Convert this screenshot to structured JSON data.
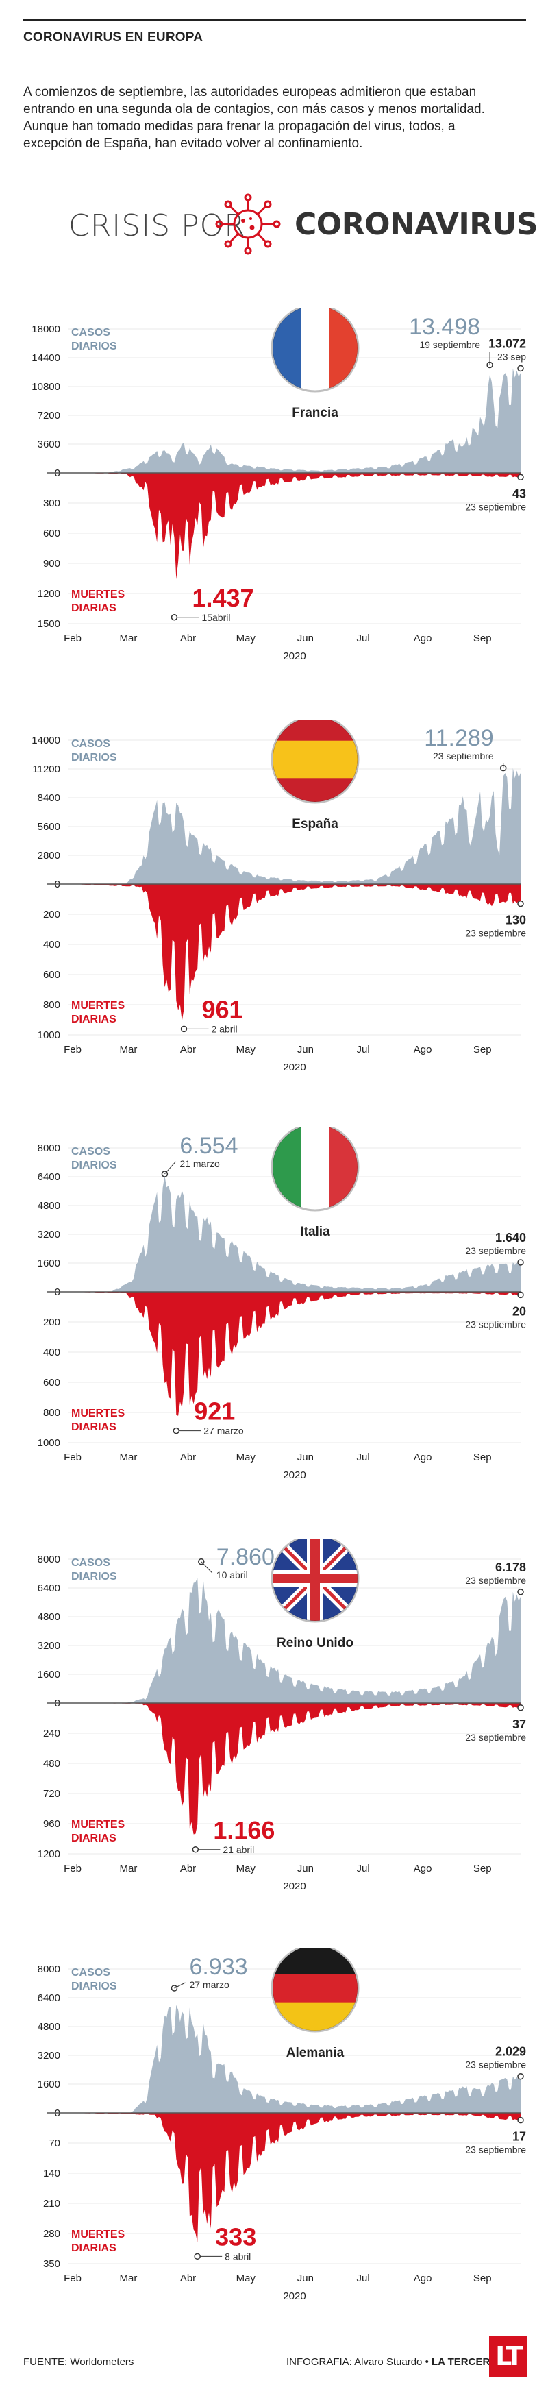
{
  "header": {
    "kicker": "CORONAVIRUS EN EUROPA",
    "intro": "A comienzos de septiembre, las autoridades europeas admitieron que estaban entrando en una segunda ola de contagios, con más casos y menos mortalidad. Aunque han tomado medidas para frenar la propagación del virus, todos, a excepción de España, han evitado volver al confinamiento."
  },
  "logo": {
    "left": "CRISIS POR",
    "right": "CORONAVIRUS"
  },
  "colors": {
    "cases": "#a9b8c6",
    "cases_label": "#7d96ab",
    "deaths": "#d6111f",
    "text": "#222222",
    "brand": "#d6111f"
  },
  "months": [
    "Feb",
    "Mar",
    "Abr",
    "May",
    "Jun",
    "Jul",
    "Ago",
    "Sep"
  ],
  "year": "2020",
  "cases_label_1": "CASOS",
  "cases_label_2": "DIARIOS",
  "deaths_label_1": "MUERTES",
  "deaths_label_2": "DIARIAS",
  "chart_data": [
    {
      "type": "area",
      "country": "Francia",
      "flag": "france",
      "x_range": [
        "2020-02-01",
        "2020-09-23"
      ],
      "cases_ticks": [
        "18000",
        "14400",
        "10800",
        "7200",
        "3600",
        "0"
      ],
      "deaths_ticks": [
        "300",
        "600",
        "900",
        "1200",
        "1500"
      ],
      "ylim_cases": [
        0,
        18000
      ],
      "ylim_deaths": [
        0,
        1500
      ],
      "cases_series": [
        [
          0,
          0
        ],
        [
          20,
          5
        ],
        [
          35,
          800
        ],
        [
          48,
          3200
        ],
        [
          55,
          2000
        ],
        [
          60,
          4100
        ],
        [
          68,
          1600
        ],
        [
          75,
          3900
        ],
        [
          84,
          1200
        ],
        [
          95,
          900
        ],
        [
          110,
          500
        ],
        [
          130,
          300
        ],
        [
          150,
          600
        ],
        [
          165,
          800
        ],
        [
          180,
          1600
        ],
        [
          190,
          2600
        ],
        [
          200,
          4500
        ],
        [
          205,
          3400
        ],
        [
          210,
          6100
        ],
        [
          213,
          5000
        ],
        [
          215,
          9800
        ],
        [
          217,
          8000
        ],
        [
          219,
          13498
        ],
        [
          221,
          9500
        ],
        [
          223,
          8700
        ],
        [
          225,
          11000
        ],
        [
          226,
          13072
        ],
        [
          235,
          13072
        ]
      ],
      "deaths_series": [
        [
          0,
          0
        ],
        [
          30,
          10
        ],
        [
          40,
          200
        ],
        [
          48,
          900
        ],
        [
          52,
          500
        ],
        [
          55,
          1437
        ],
        [
          58,
          700
        ],
        [
          62,
          1100
        ],
        [
          66,
          500
        ],
        [
          70,
          800
        ],
        [
          75,
          400
        ],
        [
          80,
          500
        ],
        [
          90,
          250
        ],
        [
          100,
          150
        ],
        [
          110,
          110
        ],
        [
          130,
          60
        ],
        [
          160,
          30
        ],
        [
          190,
          25
        ],
        [
          220,
          40
        ],
        [
          226,
          43
        ],
        [
          235,
          43
        ]
      ],
      "peak_cases": {
        "value": "13.498",
        "date": "19 septiembre"
      },
      "last_cases": {
        "value": "13.072",
        "date": "23 sep"
      },
      "last_deaths": {
        "value": "43",
        "date": "23 septiembre"
      },
      "peak_deaths": {
        "value": "1.437",
        "date": "15abril"
      }
    },
    {
      "type": "area",
      "country": "España",
      "flag": "spain",
      "x_range": [
        "2020-02-01",
        "2020-09-23"
      ],
      "cases_ticks": [
        "14000",
        "11200",
        "8400",
        "5600",
        "2800",
        "0"
      ],
      "deaths_ticks": [
        "200",
        "400",
        "600",
        "800",
        "1000"
      ],
      "ylim_cases": [
        0,
        14000
      ],
      "ylim_deaths": [
        0,
        1000
      ],
      "cases_series": [
        [
          0,
          0
        ],
        [
          30,
          10
        ],
        [
          38,
          2000
        ],
        [
          45,
          8000
        ],
        [
          48,
          9200
        ],
        [
          52,
          7000
        ],
        [
          56,
          8500
        ],
        [
          62,
          5500
        ],
        [
          70,
          4200
        ],
        [
          80,
          2500
        ],
        [
          90,
          1400
        ],
        [
          100,
          800
        ],
        [
          120,
          400
        ],
        [
          140,
          300
        ],
        [
          160,
          500
        ],
        [
          170,
          1500
        ],
        [
          180,
          3000
        ],
        [
          190,
          5000
        ],
        [
          200,
          7000
        ],
        [
          205,
          8700
        ],
        [
          210,
          5000
        ],
        [
          214,
          9500
        ],
        [
          218,
          6000
        ],
        [
          221,
          9900
        ],
        [
          224,
          3000
        ],
        [
          226,
          11289
        ],
        [
          235,
          11289
        ]
      ],
      "deaths_series": [
        [
          0,
          0
        ],
        [
          38,
          20
        ],
        [
          45,
          300
        ],
        [
          50,
          700
        ],
        [
          55,
          850
        ],
        [
          60,
          961
        ],
        [
          62,
          800
        ],
        [
          66,
          650
        ],
        [
          72,
          500
        ],
        [
          80,
          350
        ],
        [
          90,
          200
        ],
        [
          100,
          110
        ],
        [
          120,
          40
        ],
        [
          140,
          20
        ],
        [
          170,
          15
        ],
        [
          190,
          50
        ],
        [
          210,
          100
        ],
        [
          220,
          150
        ],
        [
          226,
          130
        ],
        [
          235,
          130
        ]
      ],
      "peak_cases": {
        "value": "11.289",
        "date": "23 septiembre"
      },
      "last_deaths": {
        "value": "130",
        "date": "23 septiembre"
      },
      "peak_deaths": {
        "value": "961",
        "date": "2 abril"
      }
    },
    {
      "type": "area",
      "country": "Italia",
      "flag": "italy",
      "x_range": [
        "2020-02-01",
        "2020-09-23"
      ],
      "cases_ticks": [
        "8000",
        "6400",
        "4800",
        "3200",
        "1600",
        "0"
      ],
      "deaths_ticks": [
        "200",
        "400",
        "600",
        "800",
        "1000"
      ],
      "ylim_cases": [
        0,
        8000
      ],
      "ylim_deaths": [
        0,
        1000
      ],
      "cases_series": [
        [
          0,
          0
        ],
        [
          22,
          5
        ],
        [
          32,
          600
        ],
        [
          40,
          3000
        ],
        [
          45,
          5500
        ],
        [
          50,
          6554
        ],
        [
          55,
          5500
        ],
        [
          60,
          5800
        ],
        [
          66,
          4500
        ],
        [
          72,
          4200
        ],
        [
          80,
          3200
        ],
        [
          90,
          2500
        ],
        [
          100,
          1500
        ],
        [
          110,
          900
        ],
        [
          120,
          500
        ],
        [
          135,
          300
        ],
        [
          150,
          250
        ],
        [
          170,
          200
        ],
        [
          185,
          400
        ],
        [
          195,
          900
        ],
        [
          205,
          1200
        ],
        [
          215,
          1500
        ],
        [
          226,
          1640
        ],
        [
          235,
          1640
        ]
      ],
      "deaths_series": [
        [
          0,
          0
        ],
        [
          30,
          10
        ],
        [
          40,
          200
        ],
        [
          48,
          500
        ],
        [
          53,
          800
        ],
        [
          56,
          921
        ],
        [
          60,
          750
        ],
        [
          65,
          800
        ],
        [
          70,
          600
        ],
        [
          78,
          550
        ],
        [
          86,
          400
        ],
        [
          95,
          300
        ],
        [
          105,
          200
        ],
        [
          115,
          100
        ],
        [
          130,
          60
        ],
        [
          150,
          20
        ],
        [
          180,
          10
        ],
        [
          210,
          12
        ],
        [
          226,
          20
        ],
        [
          235,
          20
        ]
      ],
      "peak_cases": {
        "value": "6.554",
        "date": "21 marzo"
      },
      "last_cases": {
        "value": "1.640",
        "date": "23 septiembre"
      },
      "last_deaths": {
        "value": "20",
        "date": "23 septiembre"
      },
      "peak_deaths": {
        "value": "921",
        "date": "27 marzo"
      }
    },
    {
      "type": "area",
      "country": "Reino Unido",
      "flag": "uk",
      "x_range": [
        "2020-02-01",
        "2020-09-23"
      ],
      "cases_ticks": [
        "8000",
        "6400",
        "4800",
        "3200",
        "1600",
        "0"
      ],
      "deaths_ticks": [
        "240",
        "480",
        "720",
        "960",
        "1200"
      ],
      "ylim_cases": [
        0,
        8000
      ],
      "ylim_deaths": [
        0,
        1200
      ],
      "cases_series": [
        [
          0,
          0
        ],
        [
          30,
          5
        ],
        [
          40,
          300
        ],
        [
          48,
          2500
        ],
        [
          55,
          4500
        ],
        [
          62,
          6000
        ],
        [
          65,
          7000
        ],
        [
          69,
          7860
        ],
        [
          73,
          5000
        ],
        [
          78,
          5500
        ],
        [
          85,
          4000
        ],
        [
          92,
          3500
        ],
        [
          100,
          2500
        ],
        [
          110,
          1800
        ],
        [
          120,
          1300
        ],
        [
          135,
          900
        ],
        [
          150,
          700
        ],
        [
          170,
          650
        ],
        [
          190,
          900
        ],
        [
          205,
          1500
        ],
        [
          215,
          3000
        ],
        [
          222,
          4000
        ],
        [
          226,
          6178
        ],
        [
          235,
          6178
        ]
      ],
      "deaths_series": [
        [
          0,
          0
        ],
        [
          38,
          5
        ],
        [
          45,
          100
        ],
        [
          52,
          500
        ],
        [
          58,
          800
        ],
        [
          62,
          1000
        ],
        [
          66,
          1166
        ],
        [
          70,
          800
        ],
        [
          75,
          700
        ],
        [
          80,
          550
        ],
        [
          88,
          450
        ],
        [
          95,
          350
        ],
        [
          105,
          250
        ],
        [
          115,
          200
        ],
        [
          130,
          120
        ],
        [
          150,
          60
        ],
        [
          170,
          25
        ],
        [
          200,
          15
        ],
        [
          220,
          25
        ],
        [
          226,
          37
        ],
        [
          235,
          37
        ]
      ],
      "peak_cases": {
        "value": "7.860",
        "date": "10 abril"
      },
      "last_cases": {
        "value": "6.178",
        "date": "23 septiembre"
      },
      "last_deaths": {
        "value": "37",
        "date": "23 septiembre"
      },
      "peak_deaths": {
        "value": "1.166",
        "date": "21 abril"
      }
    },
    {
      "type": "area",
      "country": "Alemania",
      "flag": "germany",
      "x_range": [
        "2020-02-01",
        "2020-09-23"
      ],
      "cases_ticks": [
        "8000",
        "6400",
        "4800",
        "3200",
        "1600",
        "0"
      ],
      "deaths_ticks": [
        "70",
        "140",
        "210",
        "280",
        "350"
      ],
      "ylim_cases": [
        0,
        8000
      ],
      "ylim_deaths": [
        0,
        350
      ],
      "cases_series": [
        [
          0,
          0
        ],
        [
          32,
          5
        ],
        [
          40,
          800
        ],
        [
          45,
          3500
        ],
        [
          50,
          5500
        ],
        [
          55,
          6933
        ],
        [
          58,
          5500
        ],
        [
          62,
          6500
        ],
        [
          66,
          4500
        ],
        [
          70,
          5200
        ],
        [
          75,
          3000
        ],
        [
          82,
          2800
        ],
        [
          90,
          1500
        ],
        [
          100,
          1000
        ],
        [
          110,
          700
        ],
        [
          125,
          500
        ],
        [
          140,
          400
        ],
        [
          160,
          500
        ],
        [
          180,
          900
        ],
        [
          195,
          1200
        ],
        [
          205,
          1500
        ],
        [
          215,
          1400
        ],
        [
          222,
          1800
        ],
        [
          226,
          2029
        ],
        [
          235,
          2029
        ]
      ],
      "deaths_series": [
        [
          0,
          0
        ],
        [
          45,
          5
        ],
        [
          52,
          60
        ],
        [
          58,
          150
        ],
        [
          63,
          250
        ],
        [
          67,
          333
        ],
        [
          70,
          250
        ],
        [
          75,
          280
        ],
        [
          80,
          200
        ],
        [
          88,
          180
        ],
        [
          95,
          130
        ],
        [
          105,
          80
        ],
        [
          115,
          50
        ],
        [
          130,
          25
        ],
        [
          150,
          10
        ],
        [
          180,
          5
        ],
        [
          210,
          6
        ],
        [
          226,
          17
        ],
        [
          235,
          17
        ]
      ],
      "peak_cases": {
        "value": "6.933",
        "date": "27 marzo"
      },
      "last_cases": {
        "value": "2.029",
        "date": "23 septiembre"
      },
      "last_deaths": {
        "value": "17",
        "date": "23 septiembre"
      },
      "peak_deaths": {
        "value": "333",
        "date": "8 abril"
      }
    }
  ],
  "footer": {
    "source": "FUENTE: Worldometers",
    "credit_prefix": "INFOGRAFIA: Alvaro Stuardo • ",
    "credit_brand": "LA TERCERA",
    "logo": "LT"
  }
}
